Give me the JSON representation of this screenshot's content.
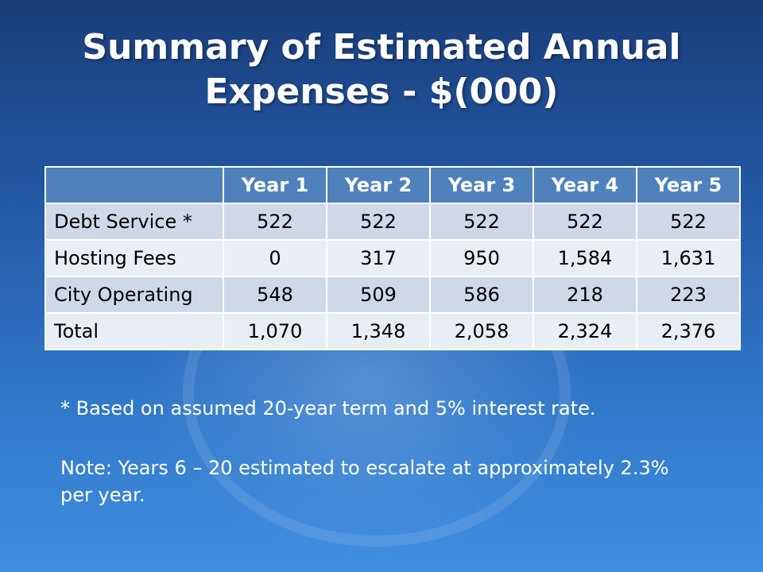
{
  "slide": {
    "title_line1": "Summary of Estimated Annual",
    "title_line2": "Expenses - $(000)"
  },
  "table": {
    "headers": [
      "",
      "Year 1",
      "Year 2",
      "Year 3",
      "Year 4",
      "Year 5"
    ],
    "rows": [
      {
        "label": "Debt Service *",
        "values": [
          "522",
          "522",
          "522",
          "522",
          "522"
        ]
      },
      {
        "label": "Hosting Fees",
        "values": [
          "0",
          "317",
          "950",
          "1,584",
          "1,631"
        ]
      },
      {
        "label": "City Operating",
        "values": [
          "548",
          "509",
          "586",
          "218",
          "223"
        ]
      },
      {
        "label": "Total",
        "values": [
          "1,070",
          "1,348",
          "2,058",
          "2,324",
          "2,376"
        ]
      }
    ]
  },
  "notes": {
    "footnote": "*  Based on assumed 20-year term and 5% interest rate.",
    "escalation": "Note:  Years 6 – 20 estimated to escalate at   approximately 2.3% per year."
  },
  "colors": {
    "header_bg": "#4f81bd",
    "row_dark": "#d0d8e8",
    "row_light": "#e9edf4"
  }
}
